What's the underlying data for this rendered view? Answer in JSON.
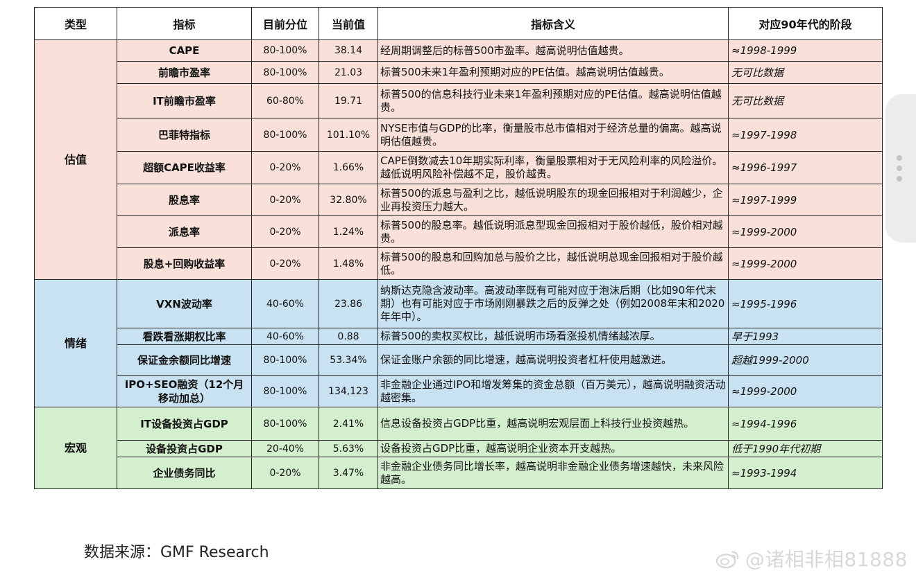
{
  "headers": [
    "类型",
    "指标",
    "目前分位",
    "当前值",
    "指标含义",
    "对应90年代的阶段"
  ],
  "groups": [
    {
      "name": "估值",
      "rows": [
        {
          "indicator": "CAPE",
          "percentile": "80-100%",
          "value": "38.14",
          "meaning": "经周期调整后的标普500市盈率。越高说明估值越贵。",
          "stage": "≈1998-1999"
        },
        {
          "indicator": "前瞻市盈率",
          "percentile": "80-100%",
          "value": "21.03",
          "meaning": "标普500未来1年盈利预期对应的PE估值。越高说明估值越贵。",
          "stage": "无可比数据"
        },
        {
          "indicator": "IT前瞻市盈率",
          "percentile": "60-80%",
          "value": "19.71",
          "meaning": "标普500的信息科技行业未来1年盈利预期对应的PE估值。越高说明估值越贵。",
          "stage": "无可比数据"
        },
        {
          "indicator": "巴菲特指标",
          "percentile": "80-100%",
          "value": "101.10%",
          "meaning": "NYSE市值与GDP的比率，衡量股市总市值相对于经济总量的偏离。越高说明估值越贵。",
          "stage": "≈1997-1998"
        },
        {
          "indicator": "超额CAPE收益率",
          "percentile": "0-20%",
          "value": "1.66%",
          "meaning": "CAPE倒数减去10年期实际利率，衡量股票相对于无风险利率的风险溢价。越低说明风险补偿越不足，股价越贵。",
          "stage": "≈1996-1997"
        },
        {
          "indicator": "股息率",
          "percentile": "0-20%",
          "value": "32.80%",
          "meaning": "标普500的派息与盈利之比，越低说明股东的现金回报相对于利润越少，企业再投资压力越大。",
          "stage": "≈1997-1999"
        },
        {
          "indicator": "派息率",
          "percentile": "0-20%",
          "value": "1.24%",
          "meaning": "标普500的股息率。越低说明派息型现金回报相对于股价越低，股价相对越贵。",
          "stage": "≈1999-2000"
        },
        {
          "indicator": "股息+回购收益率",
          "percentile": "0-20%",
          "value": "1.48%",
          "meaning": "标普500的股息和回购加总与股价之比，越低说明总现金回报相对于股价越低。",
          "stage": "≈1999-2000"
        }
      ]
    },
    {
      "name": "情绪",
      "rows": [
        {
          "indicator": "VXN波动率",
          "percentile": "40-60%",
          "value": "23.86",
          "meaning": "纳斯达克隐含波动率。高波动率既有可能对应于泡沫后期（比如90年代末期）也有可能对应于市场刚刚暴跌之后的反弹之处（例如2008年末和2020年年中）。",
          "stage": "≈1995-1996"
        },
        {
          "indicator": "看跌看涨期权比率",
          "percentile": "40-60%",
          "value": "0.88",
          "meaning": "标普500的卖权买权比，越低说明市场看涨投机情绪越浓厚。",
          "stage": "早于1993"
        },
        {
          "indicator": "保证金余额同比增速",
          "percentile": "80-100%",
          "value": "53.34%",
          "meaning": "保证金账户余额的同比增速，越高说明投资者杠杆使用越激进。",
          "stage": "超越1999-2000"
        },
        {
          "indicator": "IPO+SEO融资（12个月移动加总）",
          "percentile": "80-100%",
          "value": "134,123",
          "meaning": "非金融企业通过IPO和增发筹集的资金总额（百万美元），越高说明融资活动越密集。",
          "stage": "≈1999-2000"
        }
      ]
    },
    {
      "name": "宏观",
      "rows": [
        {
          "indicator": "IT设备投资占GDP",
          "percentile": "80-100%",
          "value": "2.41%",
          "meaning": "信息设备投资占GDP比重，越高说明宏观层面上科技行业投资越热。",
          "stage": "≈1994-1996"
        },
        {
          "indicator": "设备投资占GDP",
          "percentile": "20-40%",
          "value": "5.63%",
          "meaning": "设备投资占GDP比重，越高说明企业资本开支越热。",
          "stage": "低于1990年代初期"
        },
        {
          "indicator": "企业债务同比",
          "percentile": "0-20%",
          "value": "3.47%",
          "meaning": "非金融企业债务同比增长率，越高说明非金融企业债务增速越快，未来风险越高。",
          "stage": "≈1993-1994"
        }
      ]
    }
  ],
  "source": "数据来源：GMF Research",
  "watermark": "@诸相非相81888",
  "colors": {
    "valuation": "#f9e0d8",
    "sentiment": "#c9e2f2",
    "macro": "#d4efce"
  }
}
